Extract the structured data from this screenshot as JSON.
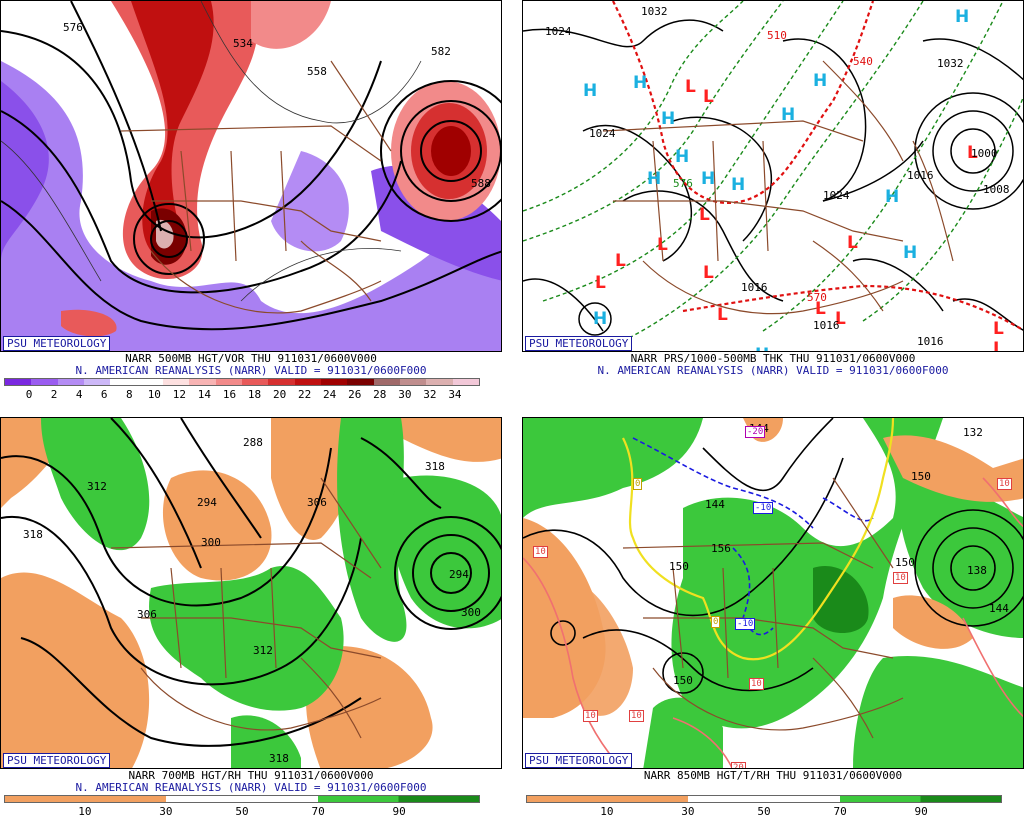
{
  "panels": [
    {
      "id": "tl",
      "badge": "PSU METEOROLOGY",
      "caption_line1": "NARR 500MB HGT/VOR THU 911031/0600V000",
      "caption_line2": "N. AMERICAN REANALYSIS (NARR) VALID = 911031/0600F000",
      "contour_labels": [
        "576",
        "534",
        "558",
        "582",
        "588"
      ],
      "colorbar": {
        "labels": [
          "0",
          "2",
          "4",
          "6",
          "8",
          "10",
          "12",
          "14",
          "16",
          "18",
          "20",
          "22",
          "24",
          "26",
          "28",
          "30",
          "32",
          "34"
        ],
        "colors": [
          "#7a28e0",
          "#9a5cf0",
          "#b48cf4",
          "#cdb8f8",
          "#ffffff",
          "#ffffff",
          "#fde0e0",
          "#f8b4b4",
          "#f28a8a",
          "#e85a5a",
          "#d63030",
          "#c01010",
          "#a00000",
          "#7a0000",
          "#a06a6a",
          "#c08e8e",
          "#dcb0b0",
          "#f2c8d8"
        ]
      }
    },
    {
      "id": "tr",
      "badge": "PSU METEOROLOGY",
      "caption_line1": "NARR PRS/1000-500MB THK THU 911031/0600V000",
      "caption_line2": "N. AMERICAN REANALYSIS (NARR) VALID = 911031/0600F000",
      "contour_labels": [
        "1024",
        "1032",
        "1024",
        "1032",
        "1016",
        "1024",
        "1016",
        "1016",
        "1000",
        "1008",
        "1016",
        "570",
        "576",
        "510",
        "540"
      ],
      "high_label": "H",
      "low_label": "L"
    },
    {
      "id": "bl",
      "badge": "PSU METEOROLOGY",
      "caption_line1": "NARR 700MB HGT/RH THU 911031/0600V000",
      "caption_line2": "N. AMERICAN REANALYSIS (NARR) VALID = 911031/0600F000",
      "contour_labels": [
        "288",
        "312",
        "294",
        "306",
        "300",
        "318",
        "318",
        "306",
        "312",
        "294",
        "300",
        "318"
      ],
      "colorbar": {
        "labels": [
          "10",
          "30",
          "50",
          "70",
          "90"
        ],
        "colors": [
          "#f2a060",
          "#f2a060",
          "#ffffff",
          "#ffffff",
          "#3cc83c",
          "#1a8a1a"
        ]
      }
    },
    {
      "id": "br",
      "badge": "PSU METEOROLOGY",
      "caption_line1": "NARR 850MB HGT/T/RH THU 911031/0600V000",
      "caption_line2": "",
      "contour_labels": [
        "144",
        "132",
        "150",
        "144",
        "150",
        "156",
        "150",
        "138",
        "144",
        "150"
      ],
      "temp_labels": [
        "-20",
        "0",
        "-10",
        "10",
        "-10",
        "0",
        "10",
        "10",
        "10",
        "10",
        "10",
        "20"
      ],
      "colorbar": {
        "labels": [
          "10",
          "30",
          "50",
          "70",
          "90"
        ]
      }
    }
  ],
  "colors": {
    "badge_text": "#1a1aa0",
    "caption_line2": "#1a1aa0",
    "borders": "#8b4a2b",
    "high": "#1ab0e0",
    "low": "#ff2020",
    "thick_dash": "#1a8a1a",
    "rh_dry": "#f2a060",
    "rh_moist": "#3cc83c",
    "rh_very_moist": "#1a8a1a"
  }
}
